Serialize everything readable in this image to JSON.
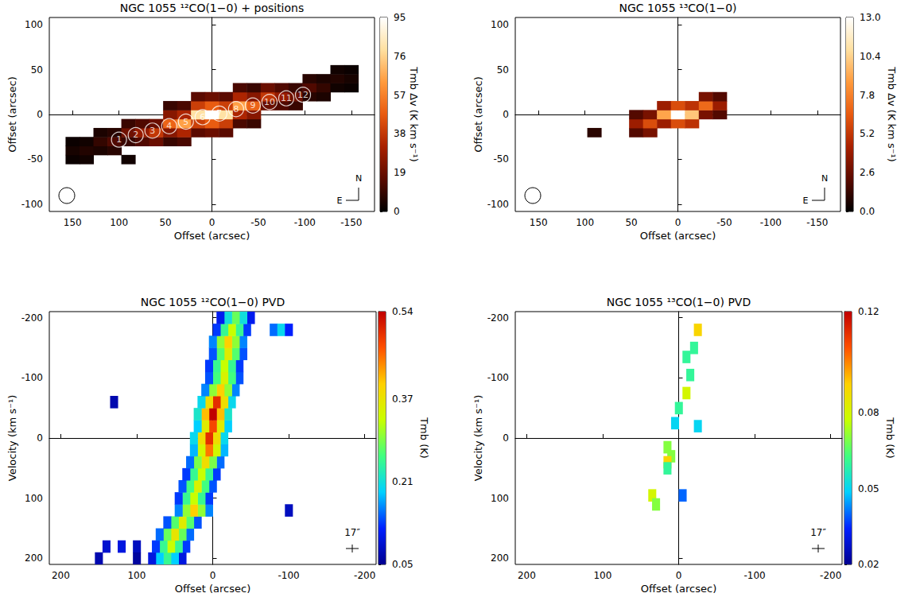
{
  "chart_data": [
    {
      "type": "heatmap",
      "title": "NGC 1055 ¹²CO(1−0) + positions",
      "x_label": "Offset (arcsec)",
      "y_label": "Offset (arcsec)",
      "xlim": [
        175,
        -175
      ],
      "xticks": [
        150,
        100,
        50,
        0,
        -50,
        -100,
        -150
      ],
      "ylim": [
        -108,
        108
      ],
      "yticks": [
        -100,
        -50,
        0,
        50,
        100
      ],
      "grid": false,
      "compass": {
        "north": "N",
        "east": "E"
      },
      "colorbar": {
        "label": "Tmb Δv (K km s⁻¹)",
        "range": [
          0,
          95
        ],
        "ticks": [
          0,
          19,
          38,
          57,
          76,
          95
        ]
      },
      "positions": {
        "labels": [
          "1",
          "2",
          "3",
          "4",
          "5",
          "6",
          "7",
          "8",
          "9",
          "10",
          "11",
          "12"
        ],
        "x": [
          100,
          82,
          64,
          46,
          28,
          10,
          -8,
          -26,
          -44,
          -62,
          -80,
          -98
        ],
        "y": [
          -28,
          -23,
          -18,
          -13,
          -8,
          -3,
          1,
          6,
          10,
          14,
          18,
          22
        ]
      },
      "cells": [
        [
          150,
          -50,
          2
        ],
        [
          150,
          -40,
          4
        ],
        [
          150,
          -30,
          2
        ],
        [
          135,
          -50,
          3
        ],
        [
          135,
          -40,
          6
        ],
        [
          135,
          -30,
          3
        ],
        [
          120,
          -40,
          5
        ],
        [
          120,
          -30,
          9
        ],
        [
          120,
          -20,
          5
        ],
        [
          105,
          -40,
          7
        ],
        [
          105,
          -30,
          14
        ],
        [
          105,
          -20,
          7
        ],
        [
          90,
          -30,
          10
        ],
        [
          90,
          -20,
          20
        ],
        [
          90,
          -10,
          10
        ],
        [
          90,
          -50,
          3
        ],
        [
          75,
          -30,
          14
        ],
        [
          75,
          -20,
          28
        ],
        [
          75,
          -10,
          14
        ],
        [
          60,
          -30,
          19
        ],
        [
          60,
          -20,
          38
        ],
        [
          60,
          -10,
          19
        ],
        [
          45,
          -30,
          10
        ],
        [
          45,
          -20,
          25
        ],
        [
          45,
          -10,
          50
        ],
        [
          45,
          0,
          25
        ],
        [
          45,
          10,
          10
        ],
        [
          30,
          -30,
          13
        ],
        [
          30,
          -20,
          33
        ],
        [
          30,
          -10,
          65
        ],
        [
          30,
          0,
          33
        ],
        [
          30,
          10,
          13
        ],
        [
          15,
          -20,
          16
        ],
        [
          15,
          -10,
          40
        ],
        [
          15,
          0,
          80
        ],
        [
          15,
          10,
          40
        ],
        [
          15,
          20,
          16
        ],
        [
          0,
          -20,
          19
        ],
        [
          0,
          -10,
          48
        ],
        [
          0,
          0,
          95
        ],
        [
          0,
          10,
          48
        ],
        [
          0,
          20,
          19
        ],
        [
          -15,
          -20,
          16
        ],
        [
          -15,
          -10,
          40
        ],
        [
          -15,
          0,
          80
        ],
        [
          -15,
          10,
          40
        ],
        [
          -15,
          20,
          16
        ],
        [
          -30,
          -10,
          13
        ],
        [
          -30,
          0,
          33
        ],
        [
          -30,
          10,
          65
        ],
        [
          -30,
          20,
          33
        ],
        [
          -30,
          30,
          13
        ],
        [
          -45,
          -10,
          10
        ],
        [
          -45,
          0,
          25
        ],
        [
          -45,
          10,
          50
        ],
        [
          -45,
          20,
          25
        ],
        [
          -45,
          30,
          10
        ],
        [
          -60,
          10,
          19
        ],
        [
          -60,
          20,
          38
        ],
        [
          -60,
          30,
          19
        ],
        [
          -75,
          10,
          14
        ],
        [
          -75,
          20,
          28
        ],
        [
          -75,
          30,
          14
        ],
        [
          -90,
          10,
          10
        ],
        [
          -90,
          20,
          20
        ],
        [
          -90,
          30,
          10
        ],
        [
          -105,
          20,
          7
        ],
        [
          -105,
          30,
          14
        ],
        [
          -105,
          40,
          7
        ],
        [
          -120,
          20,
          5
        ],
        [
          -120,
          30,
          9
        ],
        [
          -120,
          40,
          5
        ],
        [
          -135,
          30,
          3
        ],
        [
          -135,
          40,
          6
        ],
        [
          -135,
          50,
          3
        ],
        [
          -150,
          30,
          2
        ],
        [
          -150,
          40,
          4
        ],
        [
          -150,
          50,
          2
        ]
      ]
    },
    {
      "type": "heatmap",
      "title": "NGC 1055 ¹³CO(1−0)",
      "x_label": "Offset (arcsec)",
      "y_label": "Offset (arcsec)",
      "xlim": [
        175,
        -175
      ],
      "xticks": [
        150,
        100,
        50,
        0,
        -50,
        -100,
        -150
      ],
      "ylim": [
        -108,
        108
      ],
      "yticks": [
        -100,
        -50,
        0,
        50,
        100
      ],
      "grid": false,
      "compass": {
        "north": "N",
        "east": "E"
      },
      "colorbar": {
        "label": "Tmb Δv (K km s⁻¹)",
        "range": [
          0,
          13
        ],
        "ticks": [
          {
            "value": 0,
            "label": "0.0"
          },
          2.6,
          5.2,
          7.8,
          10.4,
          {
            "value": 13,
            "label": "13.0"
          }
        ]
      },
      "cells": [
        [
          45,
          -20,
          2
        ],
        [
          45,
          -10,
          4
        ],
        [
          45,
          0,
          2
        ],
        [
          30,
          -20,
          3
        ],
        [
          30,
          -10,
          6
        ],
        [
          30,
          0,
          3
        ],
        [
          15,
          -10,
          4
        ],
        [
          15,
          0,
          9
        ],
        [
          15,
          10,
          4
        ],
        [
          0,
          -10,
          6
        ],
        [
          0,
          0,
          13
        ],
        [
          0,
          10,
          6
        ],
        [
          -15,
          -10,
          5
        ],
        [
          -15,
          0,
          10
        ],
        [
          -15,
          10,
          5
        ],
        [
          -30,
          0,
          3
        ],
        [
          -30,
          10,
          7
        ],
        [
          -30,
          20,
          3
        ],
        [
          -45,
          0,
          2
        ],
        [
          -45,
          10,
          4
        ],
        [
          -45,
          20,
          2
        ],
        [
          90,
          -20,
          1
        ]
      ]
    },
    {
      "type": "heatmap",
      "title": "NGC 1055 ¹²CO(1−0) PVD",
      "x_label": "Offset (arcsec)",
      "y_label": "Velocity (km s⁻¹)",
      "xlim": [
        215,
        -215
      ],
      "xticks": [
        200,
        100,
        0,
        -100,
        -200
      ],
      "ylim": [
        210,
        -210
      ],
      "yticks": [
        -200,
        -100,
        0,
        100,
        200
      ],
      "grid": false,
      "beam_label": "17″",
      "colorbar": {
        "label": "Tmb (K)",
        "range": [
          0.05,
          0.54
        ],
        "ticks": [
          0.05,
          0.21,
          0.37,
          0.54
        ]
      },
      "cells": [
        [
          40,
          200,
          0.1
        ],
        [
          50,
          200,
          0.19
        ],
        [
          60,
          200,
          0.25
        ],
        [
          70,
          200,
          0.19
        ],
        [
          80,
          200,
          0.1
        ],
        [
          150,
          200,
          0.07
        ],
        [
          100,
          180,
          0.08
        ],
        [
          120,
          180,
          0.1
        ],
        [
          140,
          180,
          0.09
        ],
        [
          35,
          180,
          0.13
        ],
        [
          45,
          180,
          0.25
        ],
        [
          55,
          180,
          0.33
        ],
        [
          65,
          180,
          0.25
        ],
        [
          75,
          180,
          0.13
        ],
        [
          30,
          160,
          0.15
        ],
        [
          40,
          160,
          0.28
        ],
        [
          50,
          160,
          0.37
        ],
        [
          60,
          160,
          0.28
        ],
        [
          70,
          160,
          0.15
        ],
        [
          20,
          140,
          0.14
        ],
        [
          30,
          140,
          0.27
        ],
        [
          40,
          140,
          0.36
        ],
        [
          50,
          140,
          0.27
        ],
        [
          60,
          140,
          0.14
        ],
        [
          5,
          120,
          0.16
        ],
        [
          15,
          120,
          0.3
        ],
        [
          25,
          120,
          0.4
        ],
        [
          35,
          120,
          0.3
        ],
        [
          45,
          120,
          0.16
        ],
        [
          5,
          100,
          0.13
        ],
        [
          15,
          100,
          0.25
        ],
        [
          25,
          100,
          0.33
        ],
        [
          35,
          100,
          0.25
        ],
        [
          45,
          100,
          0.13
        ],
        [
          0,
          80,
          0.14
        ],
        [
          10,
          80,
          0.26
        ],
        [
          20,
          80,
          0.35
        ],
        [
          30,
          80,
          0.26
        ],
        [
          40,
          80,
          0.14
        ],
        [
          -5,
          60,
          0.13
        ],
        [
          5,
          60,
          0.25
        ],
        [
          15,
          60,
          0.33
        ],
        [
          25,
          60,
          0.25
        ],
        [
          35,
          60,
          0.13
        ],
        [
          -10,
          40,
          0.15
        ],
        [
          0,
          40,
          0.29
        ],
        [
          10,
          40,
          0.38
        ],
        [
          20,
          40,
          0.29
        ],
        [
          30,
          40,
          0.15
        ],
        [
          -15,
          20,
          0.18
        ],
        [
          -5,
          20,
          0.34
        ],
        [
          5,
          20,
          0.45
        ],
        [
          15,
          20,
          0.34
        ],
        [
          25,
          20,
          0.18
        ],
        [
          -15,
          0,
          0.2
        ],
        [
          -5,
          0,
          0.38
        ],
        [
          5,
          0,
          0.5
        ],
        [
          15,
          0,
          0.38
        ],
        [
          25,
          0,
          0.2
        ],
        [
          -20,
          -20,
          0.19
        ],
        [
          -10,
          -20,
          0.36
        ],
        [
          0,
          -20,
          0.48
        ],
        [
          10,
          -20,
          0.36
        ],
        [
          20,
          -20,
          0.19
        ],
        [
          -20,
          -40,
          0.22
        ],
        [
          -10,
          -40,
          0.41
        ],
        [
          0,
          -40,
          0.54
        ],
        [
          10,
          -40,
          0.41
        ],
        [
          20,
          -40,
          0.22
        ],
        [
          -25,
          -60,
          0.2
        ],
        [
          -15,
          -60,
          0.38
        ],
        [
          -5,
          -60,
          0.5
        ],
        [
          5,
          -60,
          0.38
        ],
        [
          15,
          -60,
          0.2
        ],
        [
          -30,
          -80,
          0.16
        ],
        [
          -20,
          -80,
          0.3
        ],
        [
          -10,
          -80,
          0.4
        ],
        [
          0,
          -80,
          0.3
        ],
        [
          10,
          -80,
          0.16
        ],
        [
          -35,
          -100,
          0.14
        ],
        [
          -25,
          -100,
          0.26
        ],
        [
          -15,
          -100,
          0.35
        ],
        [
          -5,
          -100,
          0.26
        ],
        [
          5,
          -100,
          0.14
        ],
        [
          -35,
          -120,
          0.13
        ],
        [
          -25,
          -120,
          0.25
        ],
        [
          -15,
          -120,
          0.33
        ],
        [
          -5,
          -120,
          0.25
        ],
        [
          5,
          -120,
          0.13
        ],
        [
          -40,
          -140,
          0.14
        ],
        [
          -30,
          -140,
          0.27
        ],
        [
          -20,
          -140,
          0.36
        ],
        [
          -10,
          -140,
          0.27
        ],
        [
          0,
          -140,
          0.14
        ],
        [
          -40,
          -160,
          0.16
        ],
        [
          -30,
          -160,
          0.3
        ],
        [
          -20,
          -160,
          0.4
        ],
        [
          -10,
          -160,
          0.3
        ],
        [
          0,
          -160,
          0.16
        ],
        [
          -45,
          -180,
          0.13
        ],
        [
          -35,
          -180,
          0.25
        ],
        [
          -25,
          -180,
          0.33
        ],
        [
          -15,
          -180,
          0.25
        ],
        [
          -5,
          -180,
          0.13
        ],
        [
          -50,
          -200,
          0.11
        ],
        [
          -40,
          -200,
          0.21
        ],
        [
          -30,
          -200,
          0.28
        ],
        [
          -20,
          -200,
          0.21
        ],
        [
          -10,
          -200,
          0.11
        ],
        [
          -80,
          -180,
          0.15
        ],
        [
          -90,
          -180,
          0.2
        ],
        [
          -100,
          -180,
          0.12
        ],
        [
          130,
          -60,
          0.07
        ],
        [
          100,
          200,
          0.06
        ],
        [
          -100,
          120,
          0.08
        ]
      ]
    },
    {
      "type": "heatmap",
      "title": "NGC 1055 ¹³CO(1−0) PVD",
      "x_label": "Offset (arcsec)",
      "y_label": "Velocity (km s⁻¹)",
      "xlim": [
        215,
        -215
      ],
      "xticks": [
        200,
        100,
        0,
        -100,
        -200
      ],
      "ylim": [
        210,
        -210
      ],
      "yticks": [
        -200,
        -100,
        0,
        100,
        200
      ],
      "grid": false,
      "beam_label": "17″",
      "colorbar": {
        "label": "Tmb (K)",
        "range": [
          0.02,
          0.12
        ],
        "ticks": [
          0.02,
          0.05,
          0.08,
          0.12
        ]
      },
      "cells": [
        [
          -25,
          -180,
          0.09
        ],
        [
          -20,
          -150,
          0.06
        ],
        [
          -10,
          -135,
          0.06
        ],
        [
          -15,
          -105,
          0.06
        ],
        [
          -10,
          -75,
          0.08
        ],
        [
          0,
          -50,
          0.06
        ],
        [
          5,
          -25,
          0.05
        ],
        [
          -25,
          -20,
          0.05
        ],
        [
          15,
          15,
          0.07
        ],
        [
          10,
          30,
          0.07
        ],
        [
          15,
          40,
          0.09
        ],
        [
          15,
          50,
          0.06
        ],
        [
          35,
          95,
          0.08
        ],
        [
          30,
          110,
          0.07
        ],
        [
          -5,
          95,
          0.04
        ]
      ]
    }
  ]
}
